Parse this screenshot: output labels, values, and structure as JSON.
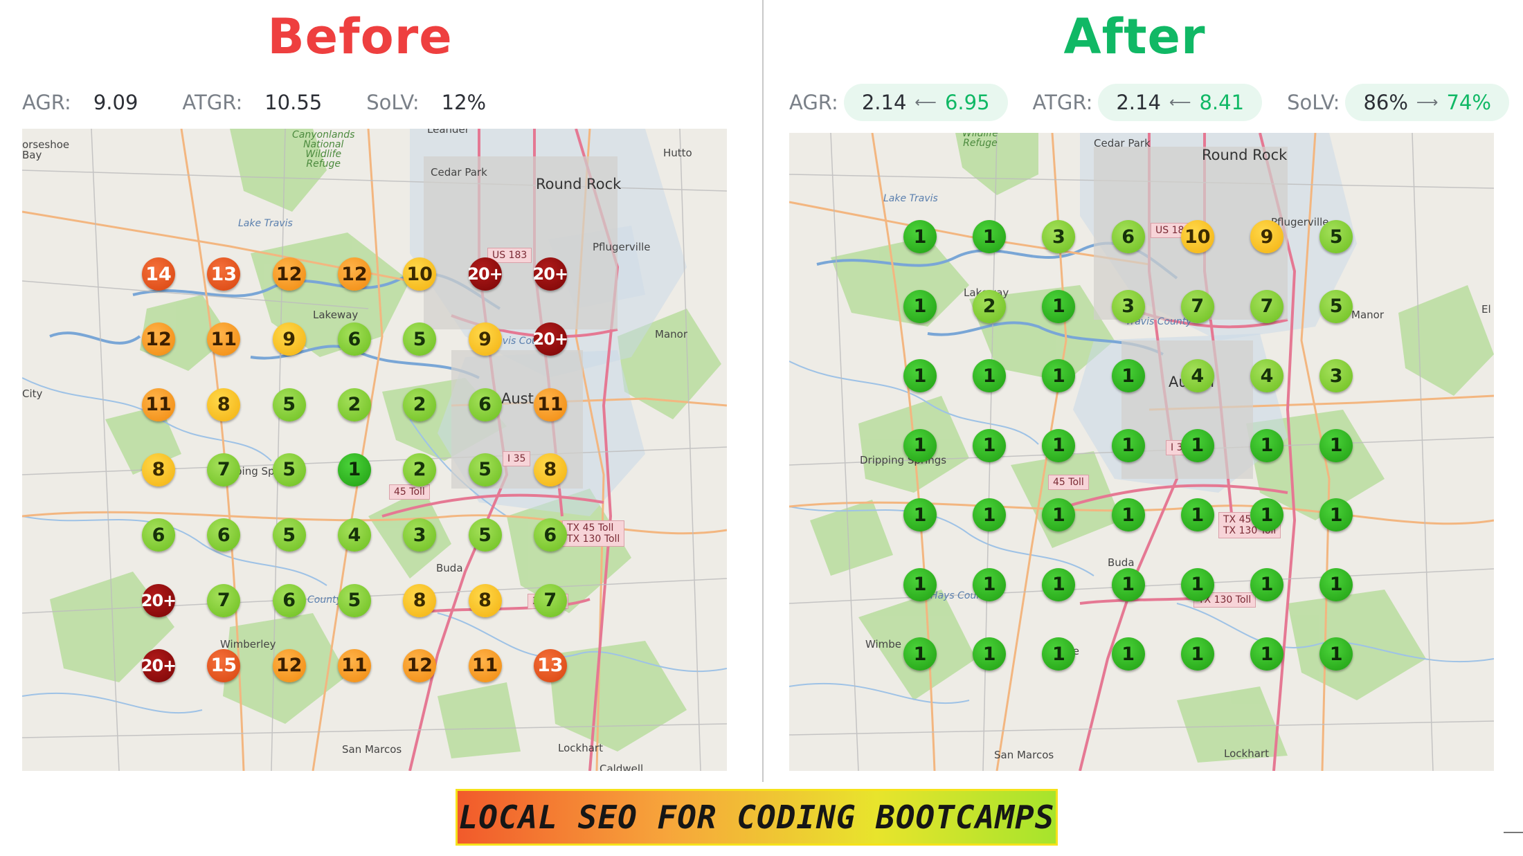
{
  "before": {
    "heading": "Before",
    "metrics": [
      {
        "label": "AGR:",
        "value": "9.09"
      },
      {
        "label": "ATGR:",
        "value": "10.55"
      },
      {
        "label": "SoLV:",
        "value": "12%"
      }
    ],
    "places": {
      "horseshoe_bay": "orseshoe\nBay",
      "canyonlands": "Canyonlands\nNational\nWildlife\nRefuge",
      "leander": "Leander",
      "hutto": "Hutto",
      "cedar_park": "Cedar Park",
      "round_rock": "Round Rock",
      "lake_travis": "Lake Travis",
      "pflugerville": "Pflugerville",
      "lakeway": "Lakeway",
      "manor": "Manor",
      "city": "City",
      "austin": "Aust",
      "dripping_springs": "ping Sp",
      "buda": "Buda",
      "county": "County",
      "wimberley": "Wimberley",
      "san_marcos": "San Marcos",
      "lockhart": "Lockhart",
      "caldwell": "Caldwell",
      "travis_county": "Travis County"
    },
    "shields": {
      "us183": "US 183",
      "i35": "I 35",
      "toll45": "45 Toll",
      "tx45": "TX 45 Toll\nTX 130 Toll",
      "toll130": "30 Toll"
    },
    "grid": [
      [
        "14",
        "13",
        "12",
        "12",
        "10",
        "20+",
        "20+"
      ],
      [
        "12",
        "11",
        "9",
        "6",
        "5",
        "9",
        "20+"
      ],
      [
        "11",
        "8",
        "5",
        "2",
        "2",
        "6",
        "11"
      ],
      [
        "8",
        "7",
        "5",
        "1",
        "2",
        "5",
        "8"
      ],
      [
        "6",
        "6",
        "5",
        "4",
        "3",
        "5",
        "6"
      ],
      [
        "20+",
        "7",
        "6",
        "5",
        "8",
        "8",
        "7"
      ],
      [
        "20+",
        "15",
        "12",
        "11",
        "12",
        "11",
        "13"
      ]
    ]
  },
  "after": {
    "heading": "After",
    "metrics": [
      {
        "label": "AGR:",
        "old": "2.14",
        "arrow": "⟵",
        "new": "6.95"
      },
      {
        "label": "ATGR:",
        "old": "2.14",
        "arrow": "⟵",
        "new": "8.41"
      },
      {
        "label": "SoLV:",
        "old": "86%",
        "arrow": "⟶",
        "new": "74%"
      }
    ],
    "places": {
      "refuge": "Wildlife\nRefuge",
      "cedar_park": "Cedar Park",
      "round_rock": "Round Rock",
      "lake_travis": "Lake Travis",
      "pflugerville": "Pflugerville",
      "lakeway": "Lakeway",
      "travis_county": "Travis County",
      "manor": "Manor",
      "elgin": "El",
      "austin": "Austin",
      "dripping_springs": "Dripping Springs",
      "buda": "Buda",
      "hays_county": "Hays County",
      "wimberley": "Wimbe",
      "kyle": "Kyle",
      "san_marcos": "San Marcos",
      "lockhart": "Lockhart"
    },
    "shields": {
      "us183": "US 183",
      "i35": "I 35",
      "toll45": "45 Toll",
      "tx45": "TX 45 Toll\nTX 130 Toll",
      "toll130": "TX 130 Toll"
    },
    "grid": [
      [
        "1",
        "1",
        "3",
        "6",
        "10",
        "9",
        "5"
      ],
      [
        "1",
        "2",
        "1",
        "3",
        "7",
        "7",
        "5"
      ],
      [
        "1",
        "1",
        "1",
        "1",
        "4",
        "4",
        "3"
      ],
      [
        "1",
        "1",
        "1",
        "1",
        "1",
        "1",
        "1"
      ],
      [
        "1",
        "1",
        "1",
        "1",
        "1",
        "1",
        "1"
      ],
      [
        "1",
        "1",
        "1",
        "1",
        "1",
        "1",
        "1"
      ],
      [
        "1",
        "1",
        "1",
        "1",
        "1",
        "1",
        "1"
      ]
    ]
  },
  "banner": {
    "text": "LOCAL SEO FOR CODING BOOTCAMPS"
  },
  "colors": {
    "before_heading": "#ee3f3f",
    "after_heading": "#10b865",
    "rank_1": "#2bb81c",
    "rank_2_7": "#8ed23a",
    "rank_8_10": "#f5c018",
    "rank_11_12": "#f59a1c",
    "rank_13_19": "#e0501a",
    "rank_20_plus": "#8a0808"
  }
}
